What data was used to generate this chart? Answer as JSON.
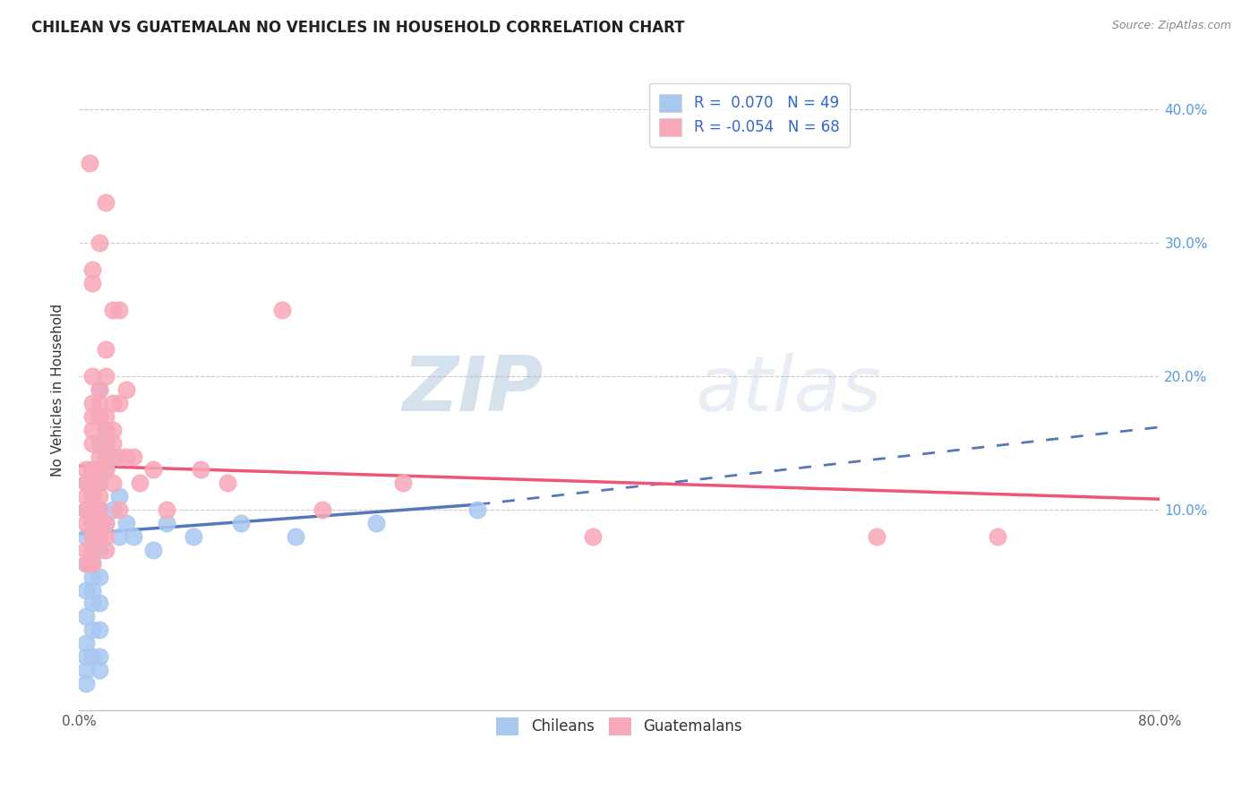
{
  "title": "CHILEAN VS GUATEMALAN NO VEHICLES IN HOUSEHOLD CORRELATION CHART",
  "source": "Source: ZipAtlas.com",
  "ylabel": "No Vehicles in Household",
  "yticks": [
    "10.0%",
    "20.0%",
    "30.0%",
    "40.0%"
  ],
  "ytick_vals": [
    0.1,
    0.2,
    0.3,
    0.4
  ],
  "xlim": [
    0.0,
    0.8
  ],
  "ylim": [
    -0.05,
    0.43
  ],
  "legend_r_chilean": "R =  0.070",
  "legend_n_chilean": "N = 49",
  "legend_r_guatemalan": "R = -0.054",
  "legend_n_guatemalan": "N = 68",
  "watermark_zip": "ZIP",
  "watermark_atlas": "atlas",
  "chilean_color": "#a8c8f0",
  "guatemalan_color": "#f8a8b8",
  "chilean_line_color": "#5577bb",
  "guatemalan_line_color": "#ee5577",
  "grid_color": "#cccccc",
  "chilean_points": [
    [
      0.005,
      0.12
    ],
    [
      0.005,
      0.1
    ],
    [
      0.005,
      0.08
    ],
    [
      0.005,
      0.06
    ],
    [
      0.005,
      0.04
    ],
    [
      0.005,
      0.02
    ],
    [
      0.005,
      0.0
    ],
    [
      0.005,
      -0.01
    ],
    [
      0.005,
      -0.02
    ],
    [
      0.005,
      -0.03
    ],
    [
      0.01,
      0.13
    ],
    [
      0.01,
      0.11
    ],
    [
      0.01,
      0.09
    ],
    [
      0.01,
      0.07
    ],
    [
      0.01,
      0.06
    ],
    [
      0.01,
      0.05
    ],
    [
      0.01,
      0.04
    ],
    [
      0.01,
      0.03
    ],
    [
      0.01,
      0.01
    ],
    [
      0.01,
      -0.01
    ],
    [
      0.015,
      0.19
    ],
    [
      0.015,
      0.17
    ],
    [
      0.015,
      0.15
    ],
    [
      0.015,
      0.13
    ],
    [
      0.015,
      0.12
    ],
    [
      0.015,
      0.1
    ],
    [
      0.015,
      0.09
    ],
    [
      0.015,
      0.07
    ],
    [
      0.015,
      0.05
    ],
    [
      0.015,
      0.03
    ],
    [
      0.015,
      0.01
    ],
    [
      0.015,
      -0.01
    ],
    [
      0.015,
      -0.02
    ],
    [
      0.02,
      0.16
    ],
    [
      0.02,
      0.13
    ],
    [
      0.02,
      0.09
    ],
    [
      0.025,
      0.14
    ],
    [
      0.025,
      0.1
    ],
    [
      0.03,
      0.11
    ],
    [
      0.03,
      0.08
    ],
    [
      0.035,
      0.09
    ],
    [
      0.04,
      0.08
    ],
    [
      0.055,
      0.07
    ],
    [
      0.065,
      0.09
    ],
    [
      0.085,
      0.08
    ],
    [
      0.12,
      0.09
    ],
    [
      0.16,
      0.08
    ],
    [
      0.22,
      0.09
    ],
    [
      0.295,
      0.1
    ]
  ],
  "guatemalan_points": [
    [
      0.005,
      0.13
    ],
    [
      0.005,
      0.12
    ],
    [
      0.005,
      0.11
    ],
    [
      0.005,
      0.1
    ],
    [
      0.005,
      0.09
    ],
    [
      0.005,
      0.07
    ],
    [
      0.005,
      0.06
    ],
    [
      0.008,
      0.36
    ],
    [
      0.01,
      0.28
    ],
    [
      0.01,
      0.27
    ],
    [
      0.01,
      0.2
    ],
    [
      0.01,
      0.18
    ],
    [
      0.01,
      0.17
    ],
    [
      0.01,
      0.16
    ],
    [
      0.01,
      0.15
    ],
    [
      0.01,
      0.13
    ],
    [
      0.01,
      0.12
    ],
    [
      0.01,
      0.11
    ],
    [
      0.01,
      0.1
    ],
    [
      0.01,
      0.09
    ],
    [
      0.01,
      0.08
    ],
    [
      0.01,
      0.07
    ],
    [
      0.01,
      0.06
    ],
    [
      0.015,
      0.3
    ],
    [
      0.015,
      0.19
    ],
    [
      0.015,
      0.18
    ],
    [
      0.015,
      0.17
    ],
    [
      0.015,
      0.14
    ],
    [
      0.015,
      0.13
    ],
    [
      0.015,
      0.12
    ],
    [
      0.015,
      0.11
    ],
    [
      0.015,
      0.1
    ],
    [
      0.015,
      0.09
    ],
    [
      0.015,
      0.08
    ],
    [
      0.02,
      0.33
    ],
    [
      0.02,
      0.22
    ],
    [
      0.02,
      0.2
    ],
    [
      0.02,
      0.17
    ],
    [
      0.02,
      0.16
    ],
    [
      0.02,
      0.15
    ],
    [
      0.02,
      0.14
    ],
    [
      0.02,
      0.13
    ],
    [
      0.02,
      0.09
    ],
    [
      0.02,
      0.08
    ],
    [
      0.02,
      0.07
    ],
    [
      0.025,
      0.25
    ],
    [
      0.025,
      0.18
    ],
    [
      0.025,
      0.16
    ],
    [
      0.025,
      0.15
    ],
    [
      0.025,
      0.12
    ],
    [
      0.03,
      0.25
    ],
    [
      0.03,
      0.18
    ],
    [
      0.03,
      0.14
    ],
    [
      0.03,
      0.1
    ],
    [
      0.035,
      0.19
    ],
    [
      0.035,
      0.14
    ],
    [
      0.04,
      0.14
    ],
    [
      0.045,
      0.12
    ],
    [
      0.055,
      0.13
    ],
    [
      0.065,
      0.1
    ],
    [
      0.09,
      0.13
    ],
    [
      0.11,
      0.12
    ],
    [
      0.15,
      0.25
    ],
    [
      0.18,
      0.1
    ],
    [
      0.24,
      0.12
    ],
    [
      0.38,
      0.08
    ],
    [
      0.59,
      0.08
    ],
    [
      0.68,
      0.08
    ]
  ],
  "chilean_line": [
    [
      0.0,
      0.082
    ],
    [
      0.295,
      0.104
    ]
  ],
  "chilean_line_dashed": [
    [
      0.295,
      0.104
    ],
    [
      0.8,
      0.162
    ]
  ],
  "guatemalan_line": [
    [
      0.0,
      0.133
    ],
    [
      0.8,
      0.108
    ]
  ]
}
